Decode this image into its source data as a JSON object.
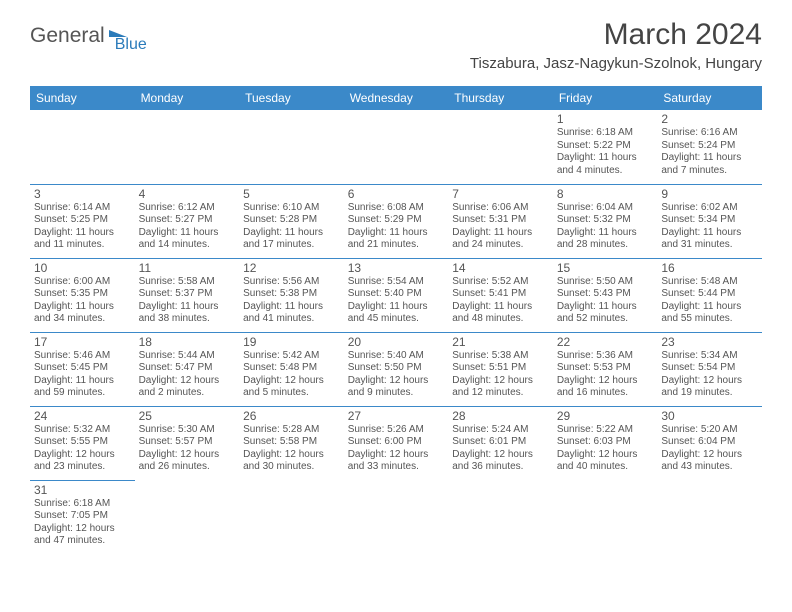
{
  "logo": {
    "text1": "General",
    "text2": "Blue"
  },
  "title": "March 2024",
  "location": "Tiszabura, Jasz-Nagykun-Szolnok, Hungary",
  "columns": [
    "Sunday",
    "Monday",
    "Tuesday",
    "Wednesday",
    "Thursday",
    "Friday",
    "Saturday"
  ],
  "colors": {
    "header_bg": "#3b89c9",
    "header_fg": "#ffffff",
    "rule": "#3b89c9",
    "text": "#555555",
    "accent": "#2b7bba",
    "background": "#ffffff"
  },
  "typography": {
    "title_fontsize": 30,
    "location_fontsize": 15,
    "dayheader_fontsize": 12,
    "daynum_fontsize": 12,
    "detail_fontsize": 10
  },
  "weeks": [
    [
      null,
      null,
      null,
      null,
      null,
      {
        "n": "1",
        "sr": "Sunrise: 6:18 AM",
        "ss": "Sunset: 5:22 PM",
        "dl1": "Daylight: 11 hours",
        "dl2": "and 4 minutes."
      },
      {
        "n": "2",
        "sr": "Sunrise: 6:16 AM",
        "ss": "Sunset: 5:24 PM",
        "dl1": "Daylight: 11 hours",
        "dl2": "and 7 minutes."
      }
    ],
    [
      {
        "n": "3",
        "sr": "Sunrise: 6:14 AM",
        "ss": "Sunset: 5:25 PM",
        "dl1": "Daylight: 11 hours",
        "dl2": "and 11 minutes."
      },
      {
        "n": "4",
        "sr": "Sunrise: 6:12 AM",
        "ss": "Sunset: 5:27 PM",
        "dl1": "Daylight: 11 hours",
        "dl2": "and 14 minutes."
      },
      {
        "n": "5",
        "sr": "Sunrise: 6:10 AM",
        "ss": "Sunset: 5:28 PM",
        "dl1": "Daylight: 11 hours",
        "dl2": "and 17 minutes."
      },
      {
        "n": "6",
        "sr": "Sunrise: 6:08 AM",
        "ss": "Sunset: 5:29 PM",
        "dl1": "Daylight: 11 hours",
        "dl2": "and 21 minutes."
      },
      {
        "n": "7",
        "sr": "Sunrise: 6:06 AM",
        "ss": "Sunset: 5:31 PM",
        "dl1": "Daylight: 11 hours",
        "dl2": "and 24 minutes."
      },
      {
        "n": "8",
        "sr": "Sunrise: 6:04 AM",
        "ss": "Sunset: 5:32 PM",
        "dl1": "Daylight: 11 hours",
        "dl2": "and 28 minutes."
      },
      {
        "n": "9",
        "sr": "Sunrise: 6:02 AM",
        "ss": "Sunset: 5:34 PM",
        "dl1": "Daylight: 11 hours",
        "dl2": "and 31 minutes."
      }
    ],
    [
      {
        "n": "10",
        "sr": "Sunrise: 6:00 AM",
        "ss": "Sunset: 5:35 PM",
        "dl1": "Daylight: 11 hours",
        "dl2": "and 34 minutes."
      },
      {
        "n": "11",
        "sr": "Sunrise: 5:58 AM",
        "ss": "Sunset: 5:37 PM",
        "dl1": "Daylight: 11 hours",
        "dl2": "and 38 minutes."
      },
      {
        "n": "12",
        "sr": "Sunrise: 5:56 AM",
        "ss": "Sunset: 5:38 PM",
        "dl1": "Daylight: 11 hours",
        "dl2": "and 41 minutes."
      },
      {
        "n": "13",
        "sr": "Sunrise: 5:54 AM",
        "ss": "Sunset: 5:40 PM",
        "dl1": "Daylight: 11 hours",
        "dl2": "and 45 minutes."
      },
      {
        "n": "14",
        "sr": "Sunrise: 5:52 AM",
        "ss": "Sunset: 5:41 PM",
        "dl1": "Daylight: 11 hours",
        "dl2": "and 48 minutes."
      },
      {
        "n": "15",
        "sr": "Sunrise: 5:50 AM",
        "ss": "Sunset: 5:43 PM",
        "dl1": "Daylight: 11 hours",
        "dl2": "and 52 minutes."
      },
      {
        "n": "16",
        "sr": "Sunrise: 5:48 AM",
        "ss": "Sunset: 5:44 PM",
        "dl1": "Daylight: 11 hours",
        "dl2": "and 55 minutes."
      }
    ],
    [
      {
        "n": "17",
        "sr": "Sunrise: 5:46 AM",
        "ss": "Sunset: 5:45 PM",
        "dl1": "Daylight: 11 hours",
        "dl2": "and 59 minutes."
      },
      {
        "n": "18",
        "sr": "Sunrise: 5:44 AM",
        "ss": "Sunset: 5:47 PM",
        "dl1": "Daylight: 12 hours",
        "dl2": "and 2 minutes."
      },
      {
        "n": "19",
        "sr": "Sunrise: 5:42 AM",
        "ss": "Sunset: 5:48 PM",
        "dl1": "Daylight: 12 hours",
        "dl2": "and 5 minutes."
      },
      {
        "n": "20",
        "sr": "Sunrise: 5:40 AM",
        "ss": "Sunset: 5:50 PM",
        "dl1": "Daylight: 12 hours",
        "dl2": "and 9 minutes."
      },
      {
        "n": "21",
        "sr": "Sunrise: 5:38 AM",
        "ss": "Sunset: 5:51 PM",
        "dl1": "Daylight: 12 hours",
        "dl2": "and 12 minutes."
      },
      {
        "n": "22",
        "sr": "Sunrise: 5:36 AM",
        "ss": "Sunset: 5:53 PM",
        "dl1": "Daylight: 12 hours",
        "dl2": "and 16 minutes."
      },
      {
        "n": "23",
        "sr": "Sunrise: 5:34 AM",
        "ss": "Sunset: 5:54 PM",
        "dl1": "Daylight: 12 hours",
        "dl2": "and 19 minutes."
      }
    ],
    [
      {
        "n": "24",
        "sr": "Sunrise: 5:32 AM",
        "ss": "Sunset: 5:55 PM",
        "dl1": "Daylight: 12 hours",
        "dl2": "and 23 minutes."
      },
      {
        "n": "25",
        "sr": "Sunrise: 5:30 AM",
        "ss": "Sunset: 5:57 PM",
        "dl1": "Daylight: 12 hours",
        "dl2": "and 26 minutes."
      },
      {
        "n": "26",
        "sr": "Sunrise: 5:28 AM",
        "ss": "Sunset: 5:58 PM",
        "dl1": "Daylight: 12 hours",
        "dl2": "and 30 minutes."
      },
      {
        "n": "27",
        "sr": "Sunrise: 5:26 AM",
        "ss": "Sunset: 6:00 PM",
        "dl1": "Daylight: 12 hours",
        "dl2": "and 33 minutes."
      },
      {
        "n": "28",
        "sr": "Sunrise: 5:24 AM",
        "ss": "Sunset: 6:01 PM",
        "dl1": "Daylight: 12 hours",
        "dl2": "and 36 minutes."
      },
      {
        "n": "29",
        "sr": "Sunrise: 5:22 AM",
        "ss": "Sunset: 6:03 PM",
        "dl1": "Daylight: 12 hours",
        "dl2": "and 40 minutes."
      },
      {
        "n": "30",
        "sr": "Sunrise: 5:20 AM",
        "ss": "Sunset: 6:04 PM",
        "dl1": "Daylight: 12 hours",
        "dl2": "and 43 minutes."
      }
    ],
    [
      {
        "n": "31",
        "sr": "Sunrise: 6:18 AM",
        "ss": "Sunset: 7:05 PM",
        "dl1": "Daylight: 12 hours",
        "dl2": "and 47 minutes."
      },
      null,
      null,
      null,
      null,
      null,
      null
    ]
  ]
}
